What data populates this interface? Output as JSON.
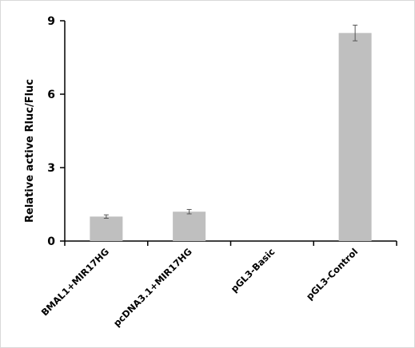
{
  "chart_data": {
    "type": "bar",
    "title": "",
    "xlabel": "",
    "ylabel": "Relative active Rluc/Fluc",
    "ylim": [
      0,
      9
    ],
    "yticks": [
      "0",
      "3",
      "6",
      "9"
    ],
    "categories": [
      "BMAL1+MIR17HG",
      "pcDNA3.1+MIR17HG",
      "pGL3-Basic",
      "pGL3-Control"
    ],
    "values": [
      1.0,
      1.2,
      0,
      8.5
    ],
    "errors": [
      0.07,
      0.09,
      0,
      0.32
    ],
    "bar_color": "#bfbfbf",
    "grid": false,
    "legend": "none"
  }
}
